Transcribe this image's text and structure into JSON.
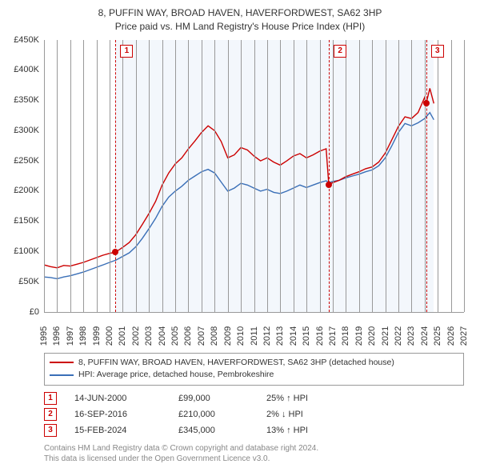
{
  "title_line1": "8, PUFFIN WAY, BROAD HAVEN, HAVERFORDWEST, SA62 3HP",
  "title_line2": "Price paid vs. HM Land Registry's House Price Index (HPI)",
  "chart": {
    "type": "line",
    "ymin": 0,
    "ymax": 450,
    "ytick_step": 50,
    "yticks_labels": [
      "£0",
      "£50K",
      "£100K",
      "£150K",
      "£200K",
      "£250K",
      "£300K",
      "£350K",
      "£400K",
      "£450K"
    ],
    "xmin": 1995,
    "xmax": 2027,
    "xticks": [
      1995,
      1996,
      1997,
      1998,
      1999,
      2000,
      2001,
      2002,
      2003,
      2004,
      2005,
      2006,
      2007,
      2008,
      2009,
      2010,
      2011,
      2012,
      2013,
      2014,
      2015,
      2016,
      2017,
      2018,
      2019,
      2020,
      2021,
      2022,
      2023,
      2024,
      2025,
      2026,
      2027
    ],
    "background": "#ffffff",
    "grid_color": "#999999",
    "shade_start_year": 2000.45,
    "shade_end_year": 2024.7,
    "colors": {
      "property": "#cc0000",
      "hpi": "#3a6fb7"
    },
    "line_width": 1.4,
    "series_property": [
      {
        "x": 1995.0,
        "y": 78
      },
      {
        "x": 1995.5,
        "y": 75
      },
      {
        "x": 1996.0,
        "y": 73
      },
      {
        "x": 1996.5,
        "y": 77
      },
      {
        "x": 1997.0,
        "y": 76
      },
      {
        "x": 1997.5,
        "y": 79
      },
      {
        "x": 1998.0,
        "y": 82
      },
      {
        "x": 1998.5,
        "y": 86
      },
      {
        "x": 1999.0,
        "y": 90
      },
      {
        "x": 1999.5,
        "y": 94
      },
      {
        "x": 2000.0,
        "y": 97
      },
      {
        "x": 2000.45,
        "y": 99
      },
      {
        "x": 2001.0,
        "y": 107
      },
      {
        "x": 2001.5,
        "y": 115
      },
      {
        "x": 2002.0,
        "y": 128
      },
      {
        "x": 2002.5,
        "y": 145
      },
      {
        "x": 2003.0,
        "y": 163
      },
      {
        "x": 2003.5,
        "y": 183
      },
      {
        "x": 2004.0,
        "y": 210
      },
      {
        "x": 2004.5,
        "y": 230
      },
      {
        "x": 2005.0,
        "y": 245
      },
      {
        "x": 2005.5,
        "y": 255
      },
      {
        "x": 2006.0,
        "y": 270
      },
      {
        "x": 2006.5,
        "y": 283
      },
      {
        "x": 2007.0,
        "y": 297
      },
      {
        "x": 2007.5,
        "y": 308
      },
      {
        "x": 2008.0,
        "y": 300
      },
      {
        "x": 2008.5,
        "y": 282
      },
      {
        "x": 2009.0,
        "y": 255
      },
      {
        "x": 2009.5,
        "y": 260
      },
      {
        "x": 2010.0,
        "y": 272
      },
      {
        "x": 2010.5,
        "y": 268
      },
      {
        "x": 2011.0,
        "y": 258
      },
      {
        "x": 2011.5,
        "y": 250
      },
      {
        "x": 2012.0,
        "y": 255
      },
      {
        "x": 2012.5,
        "y": 248
      },
      {
        "x": 2013.0,
        "y": 243
      },
      {
        "x": 2013.5,
        "y": 250
      },
      {
        "x": 2014.0,
        "y": 258
      },
      {
        "x": 2014.5,
        "y": 262
      },
      {
        "x": 2015.0,
        "y": 255
      },
      {
        "x": 2015.5,
        "y": 260
      },
      {
        "x": 2016.0,
        "y": 266
      },
      {
        "x": 2016.5,
        "y": 270
      },
      {
        "x": 2016.7,
        "y": 210
      },
      {
        "x": 2017.0,
        "y": 214
      },
      {
        "x": 2017.5,
        "y": 218
      },
      {
        "x": 2018.0,
        "y": 224
      },
      {
        "x": 2018.5,
        "y": 228
      },
      {
        "x": 2019.0,
        "y": 232
      },
      {
        "x": 2019.5,
        "y": 237
      },
      {
        "x": 2020.0,
        "y": 240
      },
      {
        "x": 2020.5,
        "y": 248
      },
      {
        "x": 2021.0,
        "y": 263
      },
      {
        "x": 2021.5,
        "y": 285
      },
      {
        "x": 2022.0,
        "y": 307
      },
      {
        "x": 2022.5,
        "y": 323
      },
      {
        "x": 2023.0,
        "y": 320
      },
      {
        "x": 2023.5,
        "y": 330
      },
      {
        "x": 2024.0,
        "y": 355
      },
      {
        "x": 2024.12,
        "y": 345
      },
      {
        "x": 2024.4,
        "y": 370
      },
      {
        "x": 2024.7,
        "y": 345
      }
    ],
    "series_hpi": [
      {
        "x": 1995.0,
        "y": 58
      },
      {
        "x": 1995.5,
        "y": 57
      },
      {
        "x": 1996.0,
        "y": 55
      },
      {
        "x": 1996.5,
        "y": 58
      },
      {
        "x": 1997.0,
        "y": 60
      },
      {
        "x": 1997.5,
        "y": 63
      },
      {
        "x": 1998.0,
        "y": 66
      },
      {
        "x": 1998.5,
        "y": 70
      },
      {
        "x": 1999.0,
        "y": 74
      },
      {
        "x": 1999.5,
        "y": 78
      },
      {
        "x": 2000.0,
        "y": 82
      },
      {
        "x": 2000.5,
        "y": 86
      },
      {
        "x": 2001.0,
        "y": 92
      },
      {
        "x": 2001.5,
        "y": 98
      },
      {
        "x": 2002.0,
        "y": 108
      },
      {
        "x": 2002.5,
        "y": 122
      },
      {
        "x": 2003.0,
        "y": 138
      },
      {
        "x": 2003.5,
        "y": 155
      },
      {
        "x": 2004.0,
        "y": 175
      },
      {
        "x": 2004.5,
        "y": 190
      },
      {
        "x": 2005.0,
        "y": 200
      },
      {
        "x": 2005.5,
        "y": 208
      },
      {
        "x": 2006.0,
        "y": 218
      },
      {
        "x": 2006.5,
        "y": 225
      },
      {
        "x": 2007.0,
        "y": 232
      },
      {
        "x": 2007.5,
        "y": 236
      },
      {
        "x": 2008.0,
        "y": 230
      },
      {
        "x": 2008.5,
        "y": 215
      },
      {
        "x": 2009.0,
        "y": 200
      },
      {
        "x": 2009.5,
        "y": 205
      },
      {
        "x": 2010.0,
        "y": 213
      },
      {
        "x": 2010.5,
        "y": 210
      },
      {
        "x": 2011.0,
        "y": 205
      },
      {
        "x": 2011.5,
        "y": 200
      },
      {
        "x": 2012.0,
        "y": 203
      },
      {
        "x": 2012.5,
        "y": 198
      },
      {
        "x": 2013.0,
        "y": 196
      },
      {
        "x": 2013.5,
        "y": 200
      },
      {
        "x": 2014.0,
        "y": 205
      },
      {
        "x": 2014.5,
        "y": 210
      },
      {
        "x": 2015.0,
        "y": 206
      },
      {
        "x": 2015.5,
        "y": 210
      },
      {
        "x": 2016.0,
        "y": 214
      },
      {
        "x": 2016.5,
        "y": 217
      },
      {
        "x": 2016.7,
        "y": 214
      },
      {
        "x": 2017.0,
        "y": 216
      },
      {
        "x": 2017.5,
        "y": 218
      },
      {
        "x": 2018.0,
        "y": 222
      },
      {
        "x": 2018.5,
        "y": 225
      },
      {
        "x": 2019.0,
        "y": 228
      },
      {
        "x": 2019.5,
        "y": 232
      },
      {
        "x": 2020.0,
        "y": 235
      },
      {
        "x": 2020.5,
        "y": 242
      },
      {
        "x": 2021.0,
        "y": 255
      },
      {
        "x": 2021.5,
        "y": 275
      },
      {
        "x": 2022.0,
        "y": 297
      },
      {
        "x": 2022.5,
        "y": 312
      },
      {
        "x": 2023.0,
        "y": 308
      },
      {
        "x": 2023.5,
        "y": 313
      },
      {
        "x": 2024.0,
        "y": 320
      },
      {
        "x": 2024.4,
        "y": 330
      },
      {
        "x": 2024.7,
        "y": 318
      }
    ],
    "markers": [
      {
        "n": "1",
        "year": 2000.45,
        "price": 99
      },
      {
        "n": "2",
        "year": 2016.71,
        "price": 210
      },
      {
        "n": "3",
        "year": 2024.12,
        "price": 345
      }
    ]
  },
  "legend": {
    "items": [
      {
        "color": "#cc0000",
        "label": "8, PUFFIN WAY, BROAD HAVEN, HAVERFORDWEST, SA62 3HP (detached house)"
      },
      {
        "color": "#3a6fb7",
        "label": "HPI: Average price, detached house, Pembrokeshire"
      }
    ]
  },
  "events": [
    {
      "n": "1",
      "date": "14-JUN-2000",
      "price": "£99,000",
      "pct": "25% ↑ HPI"
    },
    {
      "n": "2",
      "date": "16-SEP-2016",
      "price": "£210,000",
      "pct": "2% ↓ HPI"
    },
    {
      "n": "3",
      "date": "15-FEB-2024",
      "price": "£345,000",
      "pct": "13% ↑ HPI"
    }
  ],
  "footer": {
    "line1": "Contains HM Land Registry data © Crown copyright and database right 2024.",
    "line2": "This data is licensed under the Open Government Licence v3.0."
  }
}
